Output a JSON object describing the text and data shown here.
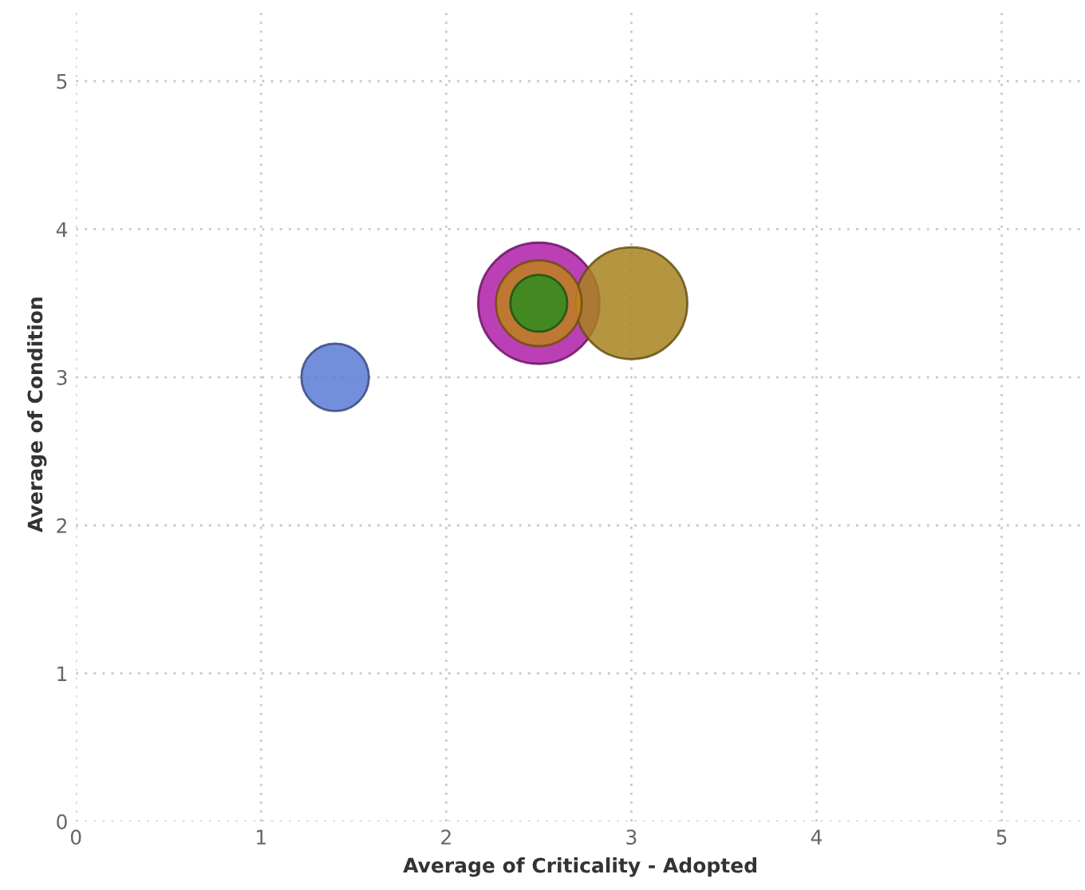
{
  "chart_data": {
    "type": "bubble",
    "xlabel": "Average of Criticality - Adopted",
    "ylabel": "Average of Condition",
    "x": [
      1.4,
      2.5,
      3.0,
      2.5,
      2.5
    ],
    "values": [
      3.0,
      3.5,
      3.5,
      3.5,
      3.5
    ],
    "sizes": [
      0.31,
      1,
      0.85,
      0.5,
      0.22
    ],
    "colors": [
      "#5b7bd5",
      "#b01fa8",
      "#a8841e",
      "#c0821c",
      "#2e8b1f"
    ],
    "xlim": [
      0,
      5.45
    ],
    "ylim": [
      0,
      5.5
    ],
    "xticks": [
      0,
      1,
      2,
      3,
      4,
      5
    ],
    "yticks": [
      0,
      1,
      2,
      3,
      4,
      5
    ],
    "grid": true
  }
}
